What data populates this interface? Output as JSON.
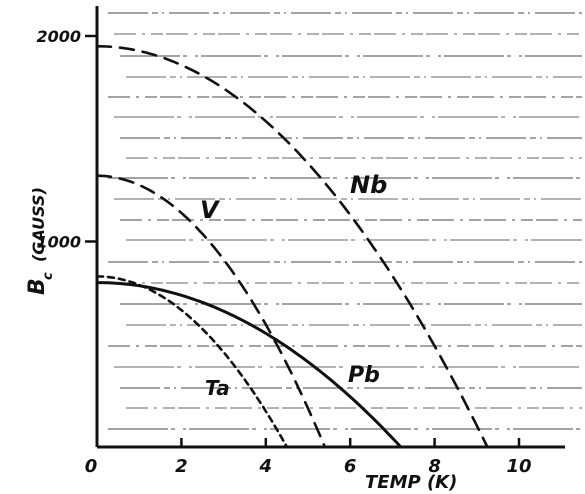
{
  "chart_data": {
    "type": "line",
    "title": "",
    "xlabel": "TEMP (K)",
    "ylabel": "B_c (GAUSS)",
    "ylabel_main": "B",
    "ylabel_sub": "c",
    "ylabel_units": "(GAUSS)",
    "xlim": [
      0,
      11
    ],
    "ylim": [
      0,
      2100
    ],
    "x_ticks": [
      0,
      2,
      4,
      6,
      8,
      10
    ],
    "x_tick_labels": [
      "0",
      "2",
      "4",
      "6",
      "8",
      "10"
    ],
    "y_ticks": [
      1000,
      2000
    ],
    "y_tick_labels": [
      "1000",
      "2000"
    ],
    "grid": false,
    "legend": "none",
    "series": [
      {
        "name": "Nb",
        "style": "dashed",
        "Tc_K": 9.25,
        "B0_gauss": 1950,
        "x": [
          0,
          1,
          2,
          3,
          4,
          5,
          6,
          7,
          8,
          9,
          9.25
        ],
        "y": [
          1950,
          1927,
          1858,
          1744,
          1585,
          1380,
          1129,
          834,
          493,
          106,
          0
        ]
      },
      {
        "name": "V",
        "style": "dashed",
        "Tc_K": 5.4,
        "B0_gauss": 1320,
        "x": [
          0,
          1,
          2,
          3,
          4,
          5,
          5.4
        ],
        "y": [
          1320,
          1275,
          1139,
          913,
          596,
          188,
          0
        ]
      },
      {
        "name": "Pb",
        "style": "solid",
        "Tc_K": 7.2,
        "B0_gauss": 800,
        "x": [
          0,
          1,
          2,
          3,
          4,
          5,
          6,
          7,
          7.2
        ],
        "y": [
          800,
          785,
          738,
          661,
          553,
          414,
          244,
          44,
          0
        ]
      },
      {
        "name": "Ta",
        "style": "dotted",
        "Tc_K": 4.5,
        "B0_gauss": 830,
        "x": [
          0,
          1,
          2,
          3,
          4,
          4.5
        ],
        "y": [
          830,
          789,
          666,
          461,
          174,
          0
        ]
      }
    ]
  }
}
